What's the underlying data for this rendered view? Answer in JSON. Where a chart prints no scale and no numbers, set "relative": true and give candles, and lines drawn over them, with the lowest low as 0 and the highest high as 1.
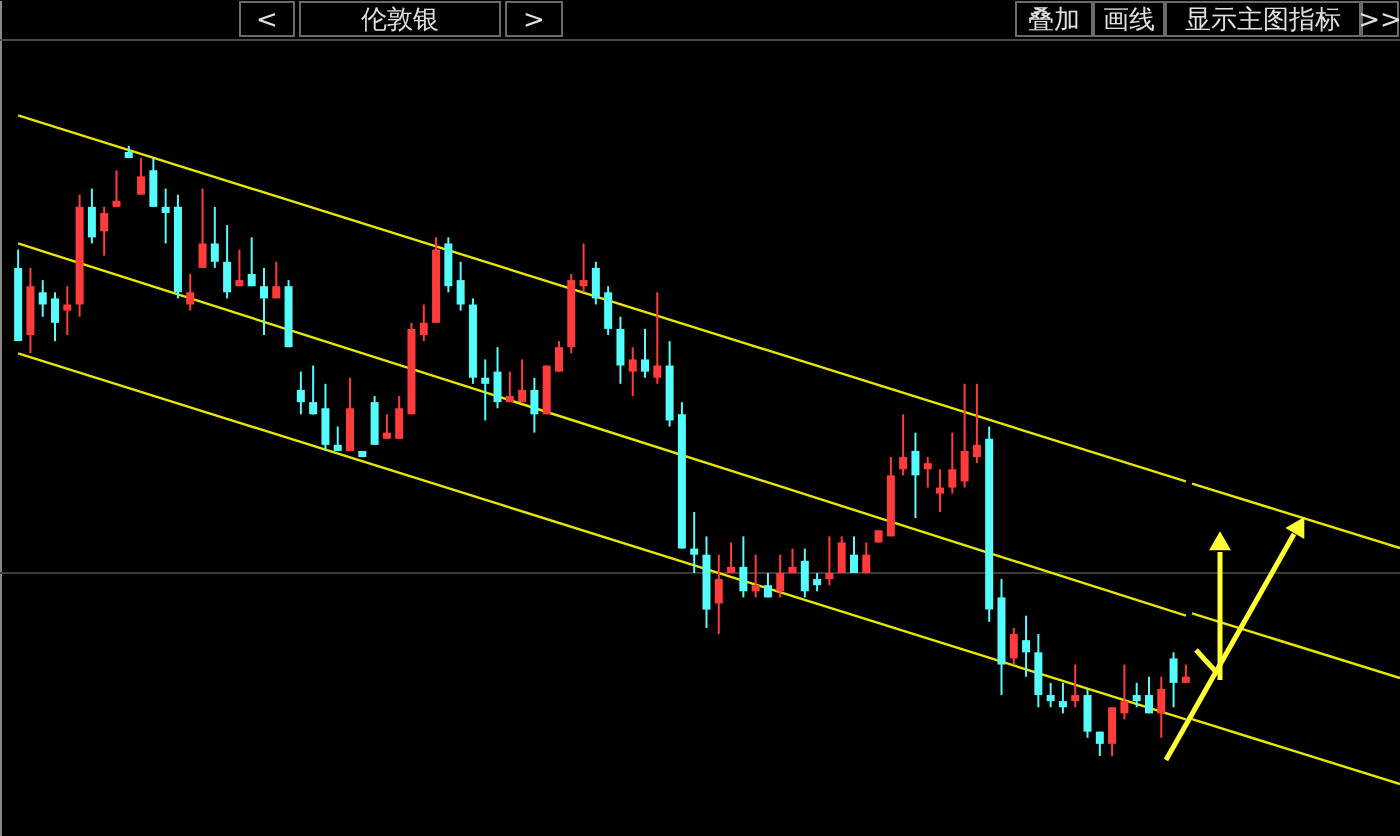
{
  "chart_data": {
    "type": "candlestick",
    "title": "伦敦银",
    "relative": true,
    "annotations": [
      "<",
      ">",
      "叠加",
      "画线",
      "显示主图指标",
      ">>"
    ],
    "colors": [
      "#54fcfc",
      "#ff3c3c",
      "#54fcfc",
      "#54fcfc",
      "#ff3c3c",
      "#ff3c3c",
      "#54fcfc",
      "#ff3c3c",
      "#ff3c3c",
      "#54fcfc",
      "#ff3c3c",
      "#54fcfc",
      "#54fcfc",
      "#54fcfc",
      "#ff3c3c",
      "#ff3c3c",
      "#54fcfc",
      "#54fcfc",
      "#ff3c3c",
      "#54fcfc",
      "#54fcfc",
      "#ff3c3c",
      "#54fcfc",
      "#54fcfc",
      "#54fcfc",
      "#54fcfc",
      "#54fcfc",
      "#ff3c3c",
      "#54fcfc",
      "#54fcfc",
      "#ff3c3c",
      "#ff3c3c",
      "#ff3c3c",
      "#ff3c3c",
      "#ff3c3c",
      "#54fcfc",
      "#54fcfc",
      "#54fcfc",
      "#54fcfc",
      "#54fcfc",
      "#ff3c3c",
      "#ff3c3c",
      "#54fcfc",
      "#ff3c3c",
      "#ff3c3c",
      "#ff3c3c",
      "#ff3c3c",
      "#54fcfc",
      "#54fcfc",
      "#54fcfc",
      "#ff3c3c",
      "#54fcfc",
      "#ff3c3c",
      "#54fcfc",
      "#54fcfc",
      "#54fcfc",
      "#54fcfc",
      "#ff3c3c",
      "#ff3c3c",
      "#54fcfc",
      "#ff3c3c",
      "#54fcfc",
      "#ff3c3c",
      "#ff3c3c",
      "#54fcfc",
      "#54fcfc",
      "#ff3c3c",
      "#ff3c3c",
      "#54fcfc",
      "#ff3c3c",
      "#ff3c3c",
      "#ff3c3c",
      "#ff3c3c",
      "#54fcfc",
      "#ff3c3c",
      "#ff3c3c",
      "#ff3c3c",
      "#ff3c3c",
      "#ff3c3c",
      "#54fcfc",
      "#54fcfc",
      "#ff3c3c",
      "#54fcfc",
      "#54fcfc",
      "#54fcfc",
      "#54fcfc",
      "#ff3c3c",
      "#54fcfc",
      "#54fcfc",
      "#ff3c3c",
      "#ff3c3c",
      "#54fcfc",
      "#54fcfc",
      "#ff3c3c",
      "#54fcfc",
      "#ff3c3c"
    ],
    "categories": [
      null,
      null,
      null,
      null,
      null,
      null,
      null,
      null,
      null,
      null,
      null,
      null,
      null,
      null,
      null,
      null,
      null,
      null,
      null,
      null,
      null,
      null,
      null,
      null,
      null,
      null,
      null,
      null,
      null,
      null,
      null,
      null,
      null,
      null,
      null,
      null,
      null,
      null,
      null,
      null,
      null,
      null,
      null,
      null,
      null,
      null,
      null,
      null,
      null,
      null,
      null,
      null,
      null,
      null,
      null,
      null,
      null,
      null,
      null,
      null,
      null,
      null,
      null,
      null,
      null,
      null,
      null,
      null,
      null,
      null,
      null,
      null,
      null,
      null,
      null,
      null,
      null,
      null,
      null,
      null,
      null,
      null,
      null,
      null,
      null,
      null,
      null,
      null,
      null,
      null,
      null,
      null,
      null,
      null,
      null,
      null
    ],
    "ohlc": [
      [
        0.8,
        0.83,
        0.68,
        0.68
      ],
      [
        0.69,
        0.8,
        0.66,
        0.77
      ],
      [
        0.76,
        0.78,
        0.72,
        0.74
      ],
      [
        0.75,
        0.76,
        0.68,
        0.71
      ],
      [
        0.73,
        0.77,
        0.69,
        0.74
      ],
      [
        0.74,
        0.92,
        0.72,
        0.9
      ],
      [
        0.9,
        0.93,
        0.84,
        0.85
      ],
      [
        0.86,
        0.9,
        0.82,
        0.89
      ],
      [
        0.9,
        0.96,
        0.9,
        0.91
      ],
      [
        0.99,
        1.0,
        0.98,
        0.98
      ],
      [
        0.92,
        0.98,
        0.92,
        0.95
      ],
      [
        0.96,
        0.98,
        0.9,
        0.9
      ],
      [
        0.9,
        0.93,
        0.84,
        0.89
      ],
      [
        0.9,
        0.92,
        0.75,
        0.76
      ],
      [
        0.74,
        0.79,
        0.73,
        0.76
      ],
      [
        0.8,
        0.93,
        0.8,
        0.84
      ],
      [
        0.84,
        0.9,
        0.8,
        0.81
      ],
      [
        0.81,
        0.87,
        0.75,
        0.76
      ],
      [
        0.77,
        0.83,
        0.77,
        0.78
      ],
      [
        0.79,
        0.85,
        0.77,
        0.77
      ],
      [
        0.77,
        0.8,
        0.69,
        0.75
      ],
      [
        0.75,
        0.81,
        0.75,
        0.77
      ],
      [
        0.77,
        0.78,
        0.67,
        0.67
      ],
      [
        0.6,
        0.63,
        0.56,
        0.58
      ],
      [
        0.58,
        0.64,
        0.56,
        0.56
      ],
      [
        0.57,
        0.61,
        0.5,
        0.51
      ],
      [
        0.51,
        0.54,
        0.5,
        0.5
      ],
      [
        0.5,
        0.62,
        0.5,
        0.57
      ],
      [
        0.5,
        0.5,
        0.49,
        0.49
      ],
      [
        0.58,
        0.59,
        0.51,
        0.51
      ],
      [
        0.52,
        0.56,
        0.52,
        0.53
      ],
      [
        0.52,
        0.59,
        0.52,
        0.57
      ],
      [
        0.56,
        0.71,
        0.56,
        0.7
      ],
      [
        0.69,
        0.74,
        0.68,
        0.71
      ],
      [
        0.71,
        0.85,
        0.71,
        0.83
      ],
      [
        0.84,
        0.85,
        0.76,
        0.77
      ],
      [
        0.78,
        0.81,
        0.73,
        0.74
      ],
      [
        0.74,
        0.75,
        0.61,
        0.62
      ],
      [
        0.62,
        0.65,
        0.55,
        0.61
      ],
      [
        0.63,
        0.67,
        0.57,
        0.58
      ],
      [
        0.58,
        0.63,
        0.58,
        0.59
      ],
      [
        0.58,
        0.65,
        0.58,
        0.6
      ],
      [
        0.6,
        0.62,
        0.53,
        0.56
      ],
      [
        0.56,
        0.64,
        0.56,
        0.64
      ],
      [
        0.63,
        0.68,
        0.63,
        0.67
      ],
      [
        0.67,
        0.79,
        0.66,
        0.78
      ],
      [
        0.77,
        0.84,
        0.76,
        0.78
      ],
      [
        0.8,
        0.81,
        0.74,
        0.75
      ],
      [
        0.76,
        0.77,
        0.69,
        0.7
      ],
      [
        0.7,
        0.72,
        0.61,
        0.64
      ],
      [
        0.63,
        0.67,
        0.59,
        0.65
      ],
      [
        0.65,
        0.7,
        0.62,
        0.63
      ],
      [
        0.62,
        0.76,
        0.61,
        0.64
      ],
      [
        0.64,
        0.68,
        0.54,
        0.55
      ],
      [
        0.56,
        0.58,
        0.34,
        0.34
      ],
      [
        0.34,
        0.4,
        0.3,
        0.33
      ],
      [
        0.33,
        0.36,
        0.21,
        0.24
      ],
      [
        0.25,
        0.33,
        0.2,
        0.29
      ],
      [
        0.3,
        0.35,
        0.3,
        0.31
      ],
      [
        0.31,
        0.36,
        0.26,
        0.27
      ],
      [
        0.27,
        0.33,
        0.26,
        0.28
      ],
      [
        0.28,
        0.3,
        0.26,
        0.26
      ],
      [
        0.27,
        0.33,
        0.26,
        0.3
      ],
      [
        0.3,
        0.34,
        0.3,
        0.31
      ],
      [
        0.32,
        0.34,
        0.26,
        0.27
      ],
      [
        0.29,
        0.3,
        0.27,
        0.28
      ],
      [
        0.29,
        0.36,
        0.28,
        0.3
      ],
      [
        0.3,
        0.36,
        0.3,
        0.35
      ],
      [
        0.33,
        0.36,
        0.3,
        0.3
      ],
      [
        0.3,
        0.35,
        0.3,
        0.33
      ],
      [
        0.35,
        0.37,
        0.35,
        0.37
      ],
      [
        0.36,
        0.49,
        0.36,
        0.46
      ],
      [
        0.47,
        0.56,
        0.46,
        0.49
      ],
      [
        0.5,
        0.53,
        0.39,
        0.46
      ],
      [
        0.47,
        0.49,
        0.44,
        0.48
      ],
      [
        0.43,
        0.47,
        0.4,
        0.44
      ],
      [
        0.44,
        0.53,
        0.43,
        0.47
      ],
      [
        0.45,
        0.61,
        0.44,
        0.5
      ],
      [
        0.49,
        0.61,
        0.48,
        0.51
      ],
      [
        0.52,
        0.54,
        0.22,
        0.24
      ],
      [
        0.26,
        0.29,
        0.1,
        0.15
      ],
      [
        0.16,
        0.21,
        0.15,
        0.2
      ],
      [
        0.19,
        0.23,
        0.13,
        0.17
      ],
      [
        0.17,
        0.2,
        0.08,
        0.1
      ],
      [
        0.1,
        0.12,
        0.08,
        0.09
      ],
      [
        0.09,
        0.12,
        0.07,
        0.08
      ],
      [
        0.09,
        0.15,
        0.08,
        0.1
      ],
      [
        0.1,
        0.11,
        0.03,
        0.04
      ],
      [
        0.04,
        0.04,
        0.0,
        0.02
      ],
      [
        0.02,
        0.08,
        0.0,
        0.08
      ],
      [
        0.07,
        0.15,
        0.06,
        0.09
      ],
      [
        0.1,
        0.12,
        0.08,
        0.09
      ],
      [
        0.1,
        0.13,
        0.07,
        0.07
      ],
      [
        0.07,
        0.13,
        0.03,
        0.11
      ],
      [
        0.16,
        0.17,
        0.08,
        0.12
      ],
      [
        0.12,
        0.15,
        0.12,
        0.13
      ]
    ],
    "series": [
      {
        "type": "line",
        "color": "#e6e600",
        "values": [
          1.05,
          null,
          null,
          null,
          null,
          null,
          null,
          null,
          null,
          null,
          null,
          null,
          null,
          null,
          null,
          null,
          null,
          null,
          null,
          null,
          null,
          null,
          null,
          null,
          null,
          null,
          null,
          null,
          null,
          null,
          null,
          null,
          null,
          null,
          null,
          null,
          null,
          null,
          null,
          null,
          null,
          null,
          null,
          null,
          null,
          null,
          null,
          null,
          null,
          null,
          null,
          null,
          null,
          null,
          null,
          null,
          null,
          null,
          null,
          null,
          null,
          null,
          null,
          null,
          null,
          null,
          null,
          null,
          null,
          null,
          null,
          null,
          null,
          null,
          null,
          null,
          null,
          null,
          null,
          null,
          null,
          null,
          null,
          null,
          null,
          null,
          null,
          null,
          null,
          null,
          null,
          null,
          null,
          null,
          null,
          0.45
        ]
      },
      {
        "type": "line",
        "color": "#e6e600",
        "values": [
          0.84,
          null,
          null,
          null,
          null,
          null,
          null,
          null,
          null,
          null,
          null,
          null,
          null,
          null,
          null,
          null,
          null,
          null,
          null,
          null,
          null,
          null,
          null,
          null,
          null,
          null,
          null,
          null,
          null,
          null,
          null,
          null,
          null,
          null,
          null,
          null,
          null,
          null,
          null,
          null,
          null,
          null,
          null,
          null,
          null,
          null,
          null,
          null,
          null,
          null,
          null,
          null,
          null,
          null,
          null,
          null,
          null,
          null,
          null,
          null,
          null,
          null,
          null,
          null,
          null,
          null,
          null,
          null,
          null,
          null,
          null,
          null,
          null,
          null,
          null,
          null,
          null,
          null,
          null,
          null,
          null,
          null,
          null,
          null,
          null,
          null,
          null,
          null,
          null,
          null,
          null,
          null,
          null,
          null,
          null,
          0.23
        ]
      },
      {
        "type": "line",
        "color": "#e6e600",
        "values": [
          0.66,
          null,
          null,
          null,
          null,
          null,
          null,
          null,
          null,
          null,
          null,
          null,
          null,
          null,
          null,
          null,
          null,
          null,
          null,
          null,
          null,
          null,
          null,
          null,
          null,
          null,
          null,
          null,
          null,
          null,
          null,
          null,
          null,
          null,
          null,
          null,
          null,
          null,
          null,
          null,
          null,
          null,
          null,
          null,
          null,
          null,
          null,
          null,
          null,
          null,
          null,
          null,
          null,
          null,
          null,
          null,
          null,
          null,
          null,
          null,
          null,
          null,
          null,
          null,
          null,
          null,
          null,
          null,
          null,
          null,
          null,
          null,
          null,
          null,
          null,
          null,
          null,
          null,
          null,
          null,
          null,
          null,
          null,
          null,
          null,
          null,
          null,
          null,
          null,
          null,
          null,
          null,
          null,
          null,
          null,
          0.06
        ]
      }
    ],
    "ref_lines": [
      {
        "axis": "y",
        "value": 0.3,
        "color": "#3a3a3a"
      }
    ]
  }
}
